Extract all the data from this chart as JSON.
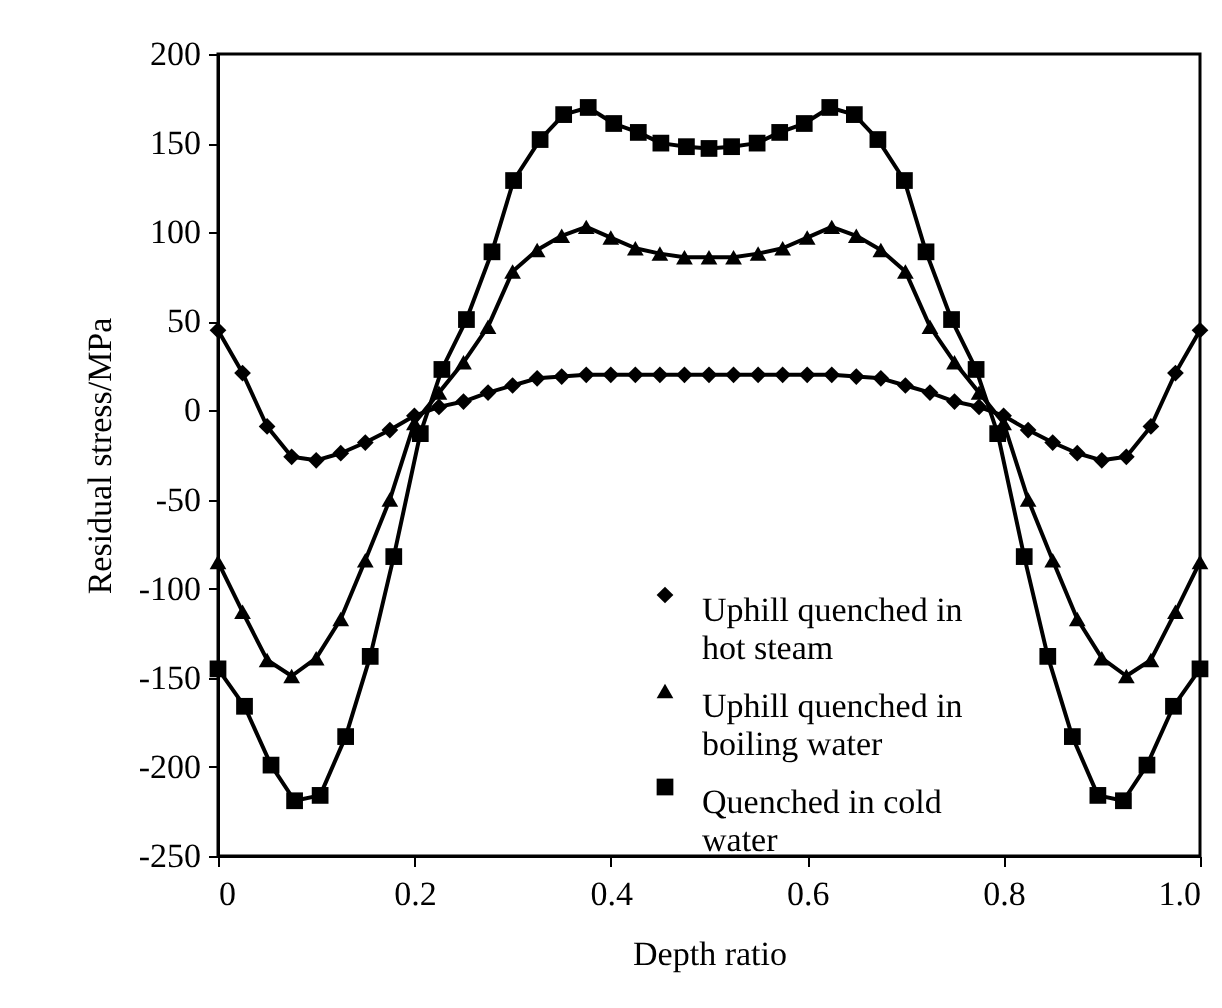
{
  "chart_data": {
    "type": "line",
    "xlabel": "Depth ratio",
    "ylabel": "Residual stress/MPa",
    "xlim": [
      0,
      1.0
    ],
    "xticks": [
      0,
      0.2,
      0.4,
      0.6,
      0.8,
      {
        "value": 1.0,
        "label": "1.0"
      }
    ],
    "ylim": [
      -250,
      200
    ],
    "yticks": [
      -250,
      -200,
      -150,
      -100,
      -50,
      0,
      50,
      100,
      150,
      200
    ],
    "grid": false,
    "legend": "bottom",
    "line_style": "solid",
    "series": [
      {
        "name": "Uphill quenched in hot steam",
        "color": "#000000",
        "marker": "diamond",
        "x": [
          0,
          0.025,
          0.05,
          0.075,
          0.1,
          0.125,
          0.15,
          0.175,
          0.2,
          0.225,
          0.25,
          0.275,
          0.3,
          0.325,
          0.35,
          0.375,
          0.4,
          0.425,
          0.45,
          0.475,
          0.5,
          0.525,
          0.55,
          0.575,
          0.6,
          0.625,
          0.65,
          0.675,
          0.7,
          0.725,
          0.75,
          0.775,
          0.8,
          0.825,
          0.85,
          0.875,
          0.9,
          0.925,
          0.95,
          0.975,
          1.0
        ],
        "values": [
          45,
          21,
          -9,
          -26,
          -28,
          -24,
          -18,
          -11,
          -3,
          2,
          5,
          10,
          14,
          18,
          19,
          20,
          20,
          20,
          20,
          20,
          20,
          20,
          20,
          20,
          20,
          20,
          19,
          18,
          14,
          10,
          5,
          2,
          -3,
          -11,
          -18,
          -24,
          -28,
          -26,
          -9,
          21,
          45
        ]
      },
      {
        "name": "Uphill quenched in boiling water",
        "color": "#000000",
        "marker": "triangle",
        "x": [
          0,
          0.025,
          0.05,
          0.075,
          0.1,
          0.125,
          0.15,
          0.175,
          0.2,
          0.225,
          0.25,
          0.275,
          0.3,
          0.325,
          0.35,
          0.375,
          0.4,
          0.425,
          0.45,
          0.475,
          0.5,
          0.525,
          0.55,
          0.575,
          0.6,
          0.625,
          0.65,
          0.675,
          0.7,
          0.725,
          0.75,
          0.775,
          0.8,
          0.825,
          0.85,
          0.875,
          0.9,
          0.925,
          0.95,
          0.975,
          1.0
        ],
        "values": [
          -85,
          -113,
          -140,
          -149,
          -139,
          -117,
          -84,
          -50,
          -7,
          10,
          27,
          47,
          78,
          90,
          98,
          103,
          97,
          91,
          88,
          86,
          86,
          86,
          88,
          91,
          97,
          103,
          98,
          90,
          78,
          47,
          27,
          10,
          -7,
          -50,
          -84,
          -117,
          -139,
          -149,
          -140,
          -113,
          -85
        ]
      },
      {
        "name": "Quenched in cold water",
        "color": "#000000",
        "marker": "square",
        "x": [
          0,
          0.027,
          0.054,
          0.078,
          0.104,
          0.13,
          0.155,
          0.179,
          0.206,
          0.228,
          0.253,
          0.279,
          0.301,
          0.328,
          0.352,
          0.377,
          0.403,
          0.428,
          0.451,
          0.477,
          0.5,
          0.523,
          0.549,
          0.572,
          0.597,
          0.623,
          0.648,
          0.672,
          0.699,
          0.721,
          0.747,
          0.772,
          0.794,
          0.821,
          0.845,
          0.87,
          0.896,
          0.922,
          0.946,
          0.973,
          1.0
        ],
        "values": [
          -145,
          -166,
          -199,
          -219,
          -216,
          -183,
          -138,
          -82,
          -13,
          23,
          51,
          89,
          129,
          152,
          166,
          170,
          161,
          156,
          150,
          148,
          147,
          148,
          150,
          156,
          161,
          170,
          166,
          152,
          129,
          89,
          51,
          23,
          -13,
          -82,
          -138,
          -183,
          -216,
          -219,
          -199,
          -166,
          -145
        ]
      }
    ]
  }
}
